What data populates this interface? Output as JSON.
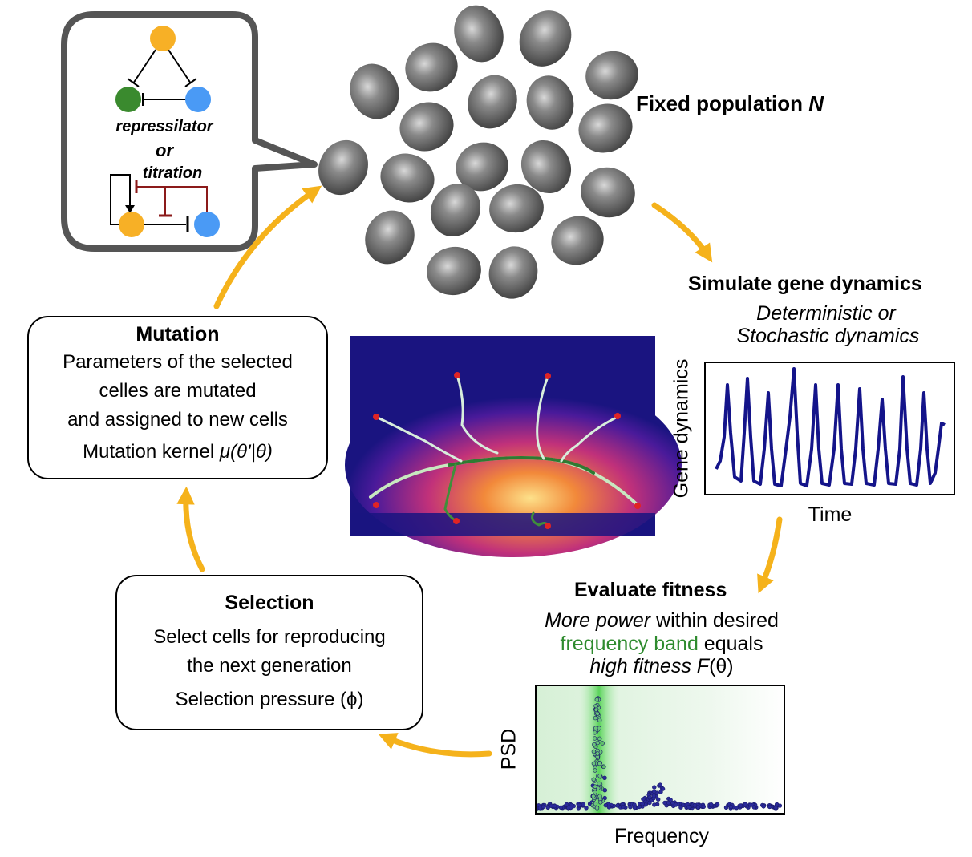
{
  "network_bubble": {
    "label_top": "repressilator",
    "label_mid": "or",
    "label_bottom": "titration"
  },
  "population": {
    "label": "Fixed population",
    "label_var": "N"
  },
  "simulate": {
    "title": "Simulate gene dynamics",
    "line1": "Deterministic or",
    "line2": "Stochastic dynamics",
    "ylabel": "Gene dynamics",
    "xlabel": "Time"
  },
  "fitness": {
    "title": "Evaluate fitness",
    "line1_italic": "More power",
    "line1_rest": " within desired",
    "line2_green": "frequency band",
    "line2_rest": " equals",
    "line3_italic": "high fitness ",
    "line3_F": "F",
    "line3_end": "(θ)",
    "ylabel": "PSD",
    "xlabel": "Frequency"
  },
  "mutation": {
    "title": "Mutation",
    "line1": "Parameters of the selected",
    "line2": "celles are mutated",
    "line3": "and assigned to new cells",
    "kernel_text": "Mutation kernel ",
    "kernel_formula": "μ(θ'|θ)"
  },
  "selection": {
    "title": "Selection",
    "line1": "Select cells for reproducing",
    "line2": "the next generation",
    "line3": "Selection pressure (ϕ)"
  },
  "colors": {
    "arrow": "#f5b21b",
    "cell": "#6e6e6e",
    "node_orange": "#f7b026",
    "node_green": "#3a8a2e",
    "node_blue": "#4a9af5",
    "repression_red": "#8b1a1a",
    "trace": "#14148a",
    "psd_peak": "#3aa84a"
  }
}
